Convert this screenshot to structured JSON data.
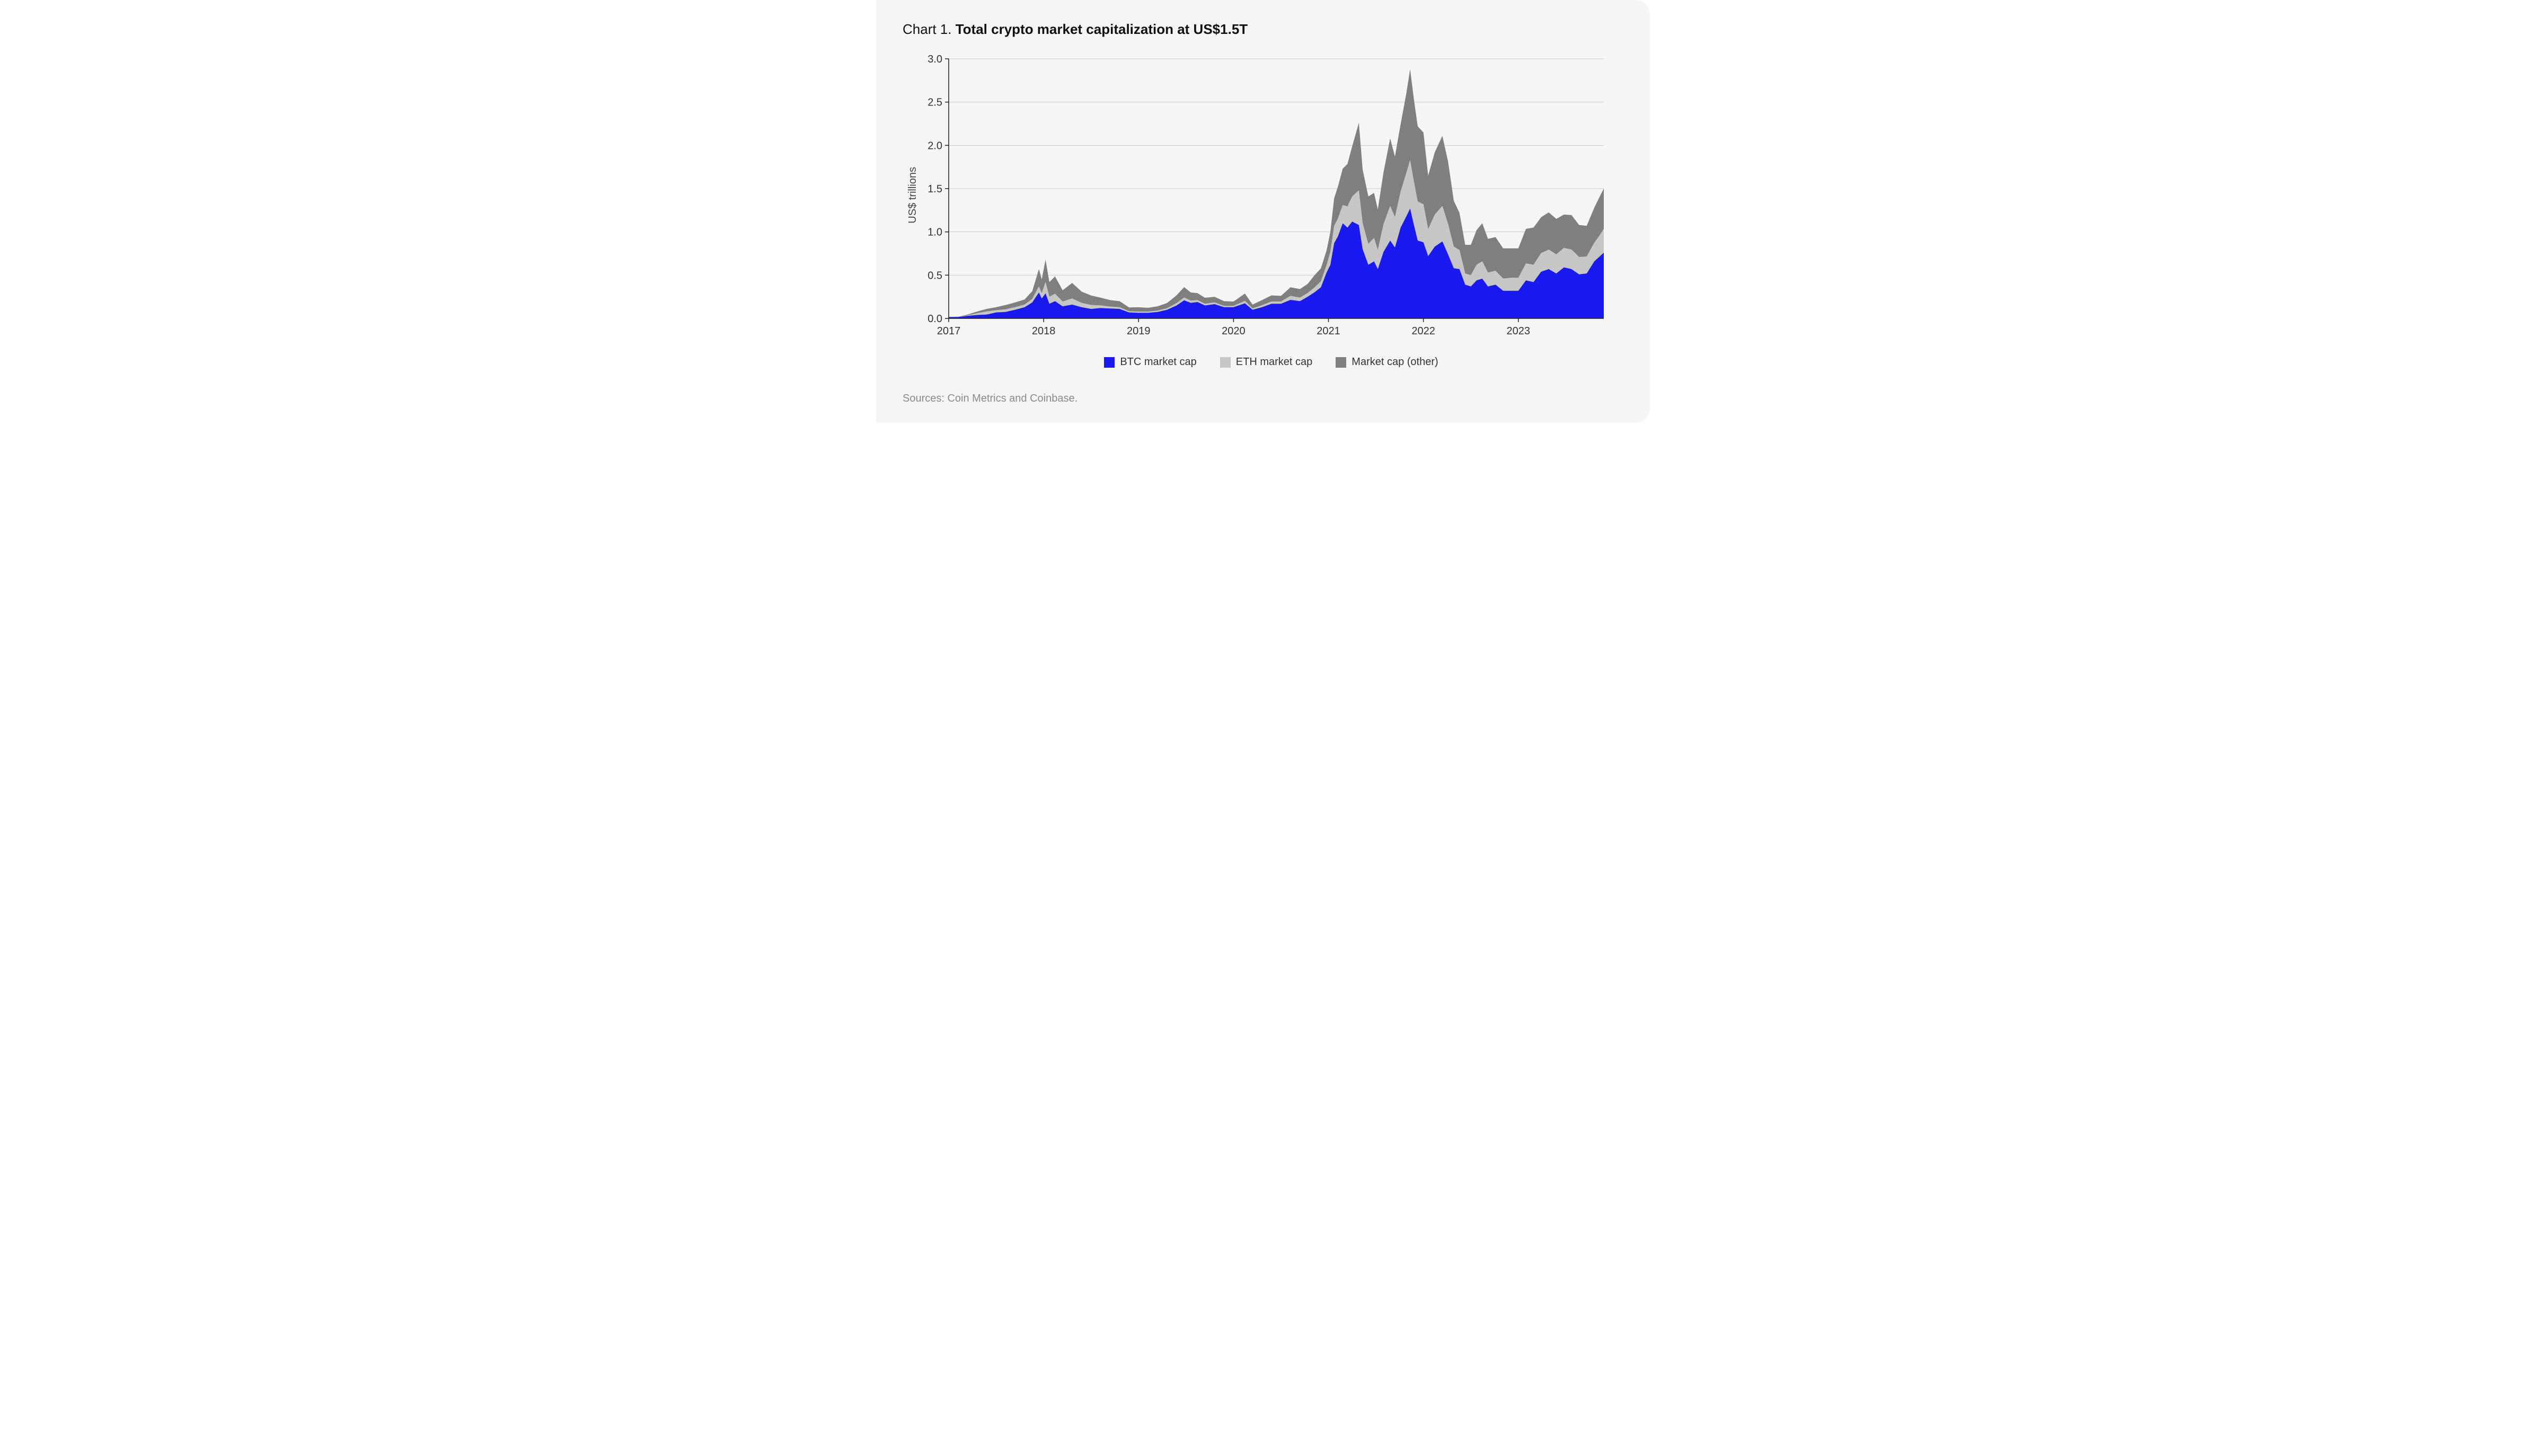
{
  "title_prefix": "Chart 1. ",
  "title_bold": "Total crypto market capitalization at US$1.5T",
  "y_axis_label": "US$ trillions",
  "sources_text": "Sources: Coin Metrics and Coinbase.",
  "legend": {
    "btc": "BTC market cap",
    "eth": "ETH market cap",
    "other": "Market cap (other)"
  },
  "chart": {
    "type": "stacked-area",
    "background_color": "#f5f5f5",
    "grid_color": "#c9c9c9",
    "axis_color": "#222222",
    "tick_font_size_px": 20,
    "x": {
      "min": 2017.0,
      "max": 2023.9,
      "ticks": [
        2017,
        2018,
        2019,
        2020,
        2021,
        2022,
        2023
      ],
      "tick_labels": [
        "2017",
        "2018",
        "2019",
        "2020",
        "2021",
        "2022",
        "2023"
      ]
    },
    "y": {
      "min": 0.0,
      "max": 3.0,
      "ticks": [
        0.0,
        0.5,
        1.0,
        1.5,
        2.0,
        2.5,
        3.0
      ],
      "tick_labels": [
        "0.0",
        "0.5",
        "1.0",
        "1.5",
        "2.0",
        "2.5",
        "3.0"
      ]
    },
    "series": [
      {
        "key": "btc",
        "color": "#1a1af0",
        "legend_label": "BTC market cap"
      },
      {
        "key": "eth",
        "color": "#c6c6c6",
        "legend_label": "ETH market cap"
      },
      {
        "key": "other",
        "color": "#7f7f7f",
        "legend_label": "Market cap (other)"
      }
    ],
    "data": [
      {
        "t": 2017.0,
        "btc": 0.015,
        "eth": 0.001,
        "other": 0.002
      },
      {
        "t": 2017.1,
        "btc": 0.017,
        "eth": 0.001,
        "other": 0.002
      },
      {
        "t": 2017.2,
        "btc": 0.03,
        "eth": 0.005,
        "other": 0.01
      },
      {
        "t": 2017.3,
        "btc": 0.04,
        "eth": 0.02,
        "other": 0.02
      },
      {
        "t": 2017.4,
        "btc": 0.045,
        "eth": 0.035,
        "other": 0.03
      },
      {
        "t": 2017.5,
        "btc": 0.07,
        "eth": 0.025,
        "other": 0.035
      },
      {
        "t": 2017.6,
        "btc": 0.075,
        "eth": 0.03,
        "other": 0.05
      },
      {
        "t": 2017.7,
        "btc": 0.1,
        "eth": 0.03,
        "other": 0.055
      },
      {
        "t": 2017.8,
        "btc": 0.13,
        "eth": 0.03,
        "other": 0.06
      },
      {
        "t": 2017.88,
        "btc": 0.185,
        "eth": 0.04,
        "other": 0.09
      },
      {
        "t": 2017.95,
        "btc": 0.3,
        "eth": 0.07,
        "other": 0.2
      },
      {
        "t": 2017.98,
        "btc": 0.23,
        "eth": 0.06,
        "other": 0.16
      },
      {
        "t": 2018.02,
        "btc": 0.29,
        "eth": 0.13,
        "other": 0.26
      },
      {
        "t": 2018.06,
        "btc": 0.17,
        "eth": 0.08,
        "other": 0.17
      },
      {
        "t": 2018.12,
        "btc": 0.2,
        "eth": 0.085,
        "other": 0.2
      },
      {
        "t": 2018.2,
        "btc": 0.14,
        "eth": 0.055,
        "other": 0.13
      },
      {
        "t": 2018.3,
        "btc": 0.16,
        "eth": 0.07,
        "other": 0.18
      },
      {
        "t": 2018.4,
        "btc": 0.13,
        "eth": 0.05,
        "other": 0.13
      },
      {
        "t": 2018.5,
        "btc": 0.11,
        "eth": 0.045,
        "other": 0.11
      },
      {
        "t": 2018.6,
        "btc": 0.12,
        "eth": 0.03,
        "other": 0.09
      },
      {
        "t": 2018.7,
        "btc": 0.115,
        "eth": 0.022,
        "other": 0.075
      },
      {
        "t": 2018.8,
        "btc": 0.11,
        "eth": 0.02,
        "other": 0.07
      },
      {
        "t": 2018.9,
        "btc": 0.07,
        "eth": 0.012,
        "other": 0.045
      },
      {
        "t": 2019.0,
        "btc": 0.065,
        "eth": 0.014,
        "other": 0.05
      },
      {
        "t": 2019.1,
        "btc": 0.065,
        "eth": 0.013,
        "other": 0.045
      },
      {
        "t": 2019.2,
        "btc": 0.075,
        "eth": 0.015,
        "other": 0.05
      },
      {
        "t": 2019.3,
        "btc": 0.1,
        "eth": 0.018,
        "other": 0.06
      },
      {
        "t": 2019.4,
        "btc": 0.15,
        "eth": 0.027,
        "other": 0.09
      },
      {
        "t": 2019.48,
        "btc": 0.21,
        "eth": 0.032,
        "other": 0.12
      },
      {
        "t": 2019.55,
        "btc": 0.18,
        "eth": 0.025,
        "other": 0.095
      },
      {
        "t": 2019.62,
        "btc": 0.19,
        "eth": 0.022,
        "other": 0.08
      },
      {
        "t": 2019.7,
        "btc": 0.15,
        "eth": 0.019,
        "other": 0.07
      },
      {
        "t": 2019.8,
        "btc": 0.165,
        "eth": 0.02,
        "other": 0.065
      },
      {
        "t": 2019.9,
        "btc": 0.13,
        "eth": 0.015,
        "other": 0.055
      },
      {
        "t": 2020.0,
        "btc": 0.13,
        "eth": 0.015,
        "other": 0.05
      },
      {
        "t": 2020.12,
        "btc": 0.175,
        "eth": 0.028,
        "other": 0.085
      },
      {
        "t": 2020.2,
        "btc": 0.1,
        "eth": 0.015,
        "other": 0.045
      },
      {
        "t": 2020.3,
        "btc": 0.13,
        "eth": 0.022,
        "other": 0.06
      },
      {
        "t": 2020.4,
        "btc": 0.17,
        "eth": 0.026,
        "other": 0.07
      },
      {
        "t": 2020.5,
        "btc": 0.17,
        "eth": 0.026,
        "other": 0.065
      },
      {
        "t": 2020.6,
        "btc": 0.215,
        "eth": 0.045,
        "other": 0.1
      },
      {
        "t": 2020.7,
        "btc": 0.2,
        "eth": 0.04,
        "other": 0.1
      },
      {
        "t": 2020.78,
        "btc": 0.25,
        "eth": 0.043,
        "other": 0.105
      },
      {
        "t": 2020.85,
        "btc": 0.3,
        "eth": 0.055,
        "other": 0.14
      },
      {
        "t": 2020.92,
        "btc": 0.36,
        "eth": 0.068,
        "other": 0.15
      },
      {
        "t": 2020.98,
        "btc": 0.53,
        "eth": 0.085,
        "other": 0.17
      },
      {
        "t": 2021.02,
        "btc": 0.62,
        "eth": 0.15,
        "other": 0.23
      },
      {
        "t": 2021.06,
        "btc": 0.87,
        "eth": 0.2,
        "other": 0.32
      },
      {
        "t": 2021.1,
        "btc": 0.95,
        "eth": 0.205,
        "other": 0.37
      },
      {
        "t": 2021.15,
        "btc": 1.1,
        "eth": 0.21,
        "other": 0.42
      },
      {
        "t": 2021.2,
        "btc": 1.05,
        "eth": 0.245,
        "other": 0.49
      },
      {
        "t": 2021.25,
        "btc": 1.12,
        "eth": 0.29,
        "other": 0.58
      },
      {
        "t": 2021.32,
        "btc": 1.08,
        "eth": 0.4,
        "other": 0.78
      },
      {
        "t": 2021.36,
        "btc": 0.8,
        "eth": 0.3,
        "other": 0.62
      },
      {
        "t": 2021.42,
        "btc": 0.62,
        "eth": 0.24,
        "other": 0.55
      },
      {
        "t": 2021.48,
        "btc": 0.66,
        "eth": 0.27,
        "other": 0.52
      },
      {
        "t": 2021.52,
        "btc": 0.57,
        "eth": 0.22,
        "other": 0.47
      },
      {
        "t": 2021.58,
        "btc": 0.77,
        "eth": 0.32,
        "other": 0.6
      },
      {
        "t": 2021.65,
        "btc": 0.9,
        "eth": 0.4,
        "other": 0.78
      },
      {
        "t": 2021.7,
        "btc": 0.82,
        "eth": 0.35,
        "other": 0.7
      },
      {
        "t": 2021.76,
        "btc": 1.05,
        "eth": 0.415,
        "other": 0.78
      },
      {
        "t": 2021.82,
        "btc": 1.18,
        "eth": 0.5,
        "other": 0.92
      },
      {
        "t": 2021.86,
        "btc": 1.27,
        "eth": 0.56,
        "other": 1.05
      },
      {
        "t": 2021.9,
        "btc": 1.08,
        "eth": 0.5,
        "other": 0.95
      },
      {
        "t": 2021.94,
        "btc": 0.9,
        "eth": 0.45,
        "other": 0.87
      },
      {
        "t": 2022.0,
        "btc": 0.88,
        "eth": 0.44,
        "other": 0.83
      },
      {
        "t": 2022.05,
        "btc": 0.72,
        "eth": 0.31,
        "other": 0.62
      },
      {
        "t": 2022.12,
        "btc": 0.83,
        "eth": 0.37,
        "other": 0.72
      },
      {
        "t": 2022.2,
        "btc": 0.89,
        "eth": 0.41,
        "other": 0.81
      },
      {
        "t": 2022.26,
        "btc": 0.74,
        "eth": 0.35,
        "other": 0.72
      },
      {
        "t": 2022.32,
        "btc": 0.58,
        "eth": 0.25,
        "other": 0.53
      },
      {
        "t": 2022.38,
        "btc": 0.57,
        "eth": 0.22,
        "other": 0.43
      },
      {
        "t": 2022.44,
        "btc": 0.39,
        "eth": 0.13,
        "other": 0.33
      },
      {
        "t": 2022.5,
        "btc": 0.37,
        "eth": 0.13,
        "other": 0.35
      },
      {
        "t": 2022.56,
        "btc": 0.44,
        "eth": 0.18,
        "other": 0.4
      },
      {
        "t": 2022.62,
        "btc": 0.46,
        "eth": 0.2,
        "other": 0.44
      },
      {
        "t": 2022.68,
        "btc": 0.37,
        "eth": 0.16,
        "other": 0.39
      },
      {
        "t": 2022.76,
        "btc": 0.39,
        "eth": 0.16,
        "other": 0.39
      },
      {
        "t": 2022.84,
        "btc": 0.32,
        "eth": 0.14,
        "other": 0.35
      },
      {
        "t": 2022.92,
        "btc": 0.32,
        "eth": 0.15,
        "other": 0.34
      },
      {
        "t": 2023.0,
        "btc": 0.32,
        "eth": 0.15,
        "other": 0.34
      },
      {
        "t": 2023.08,
        "btc": 0.44,
        "eth": 0.195,
        "other": 0.4
      },
      {
        "t": 2023.16,
        "btc": 0.42,
        "eth": 0.2,
        "other": 0.43
      },
      {
        "t": 2023.24,
        "btc": 0.54,
        "eth": 0.215,
        "other": 0.415
      },
      {
        "t": 2023.32,
        "btc": 0.57,
        "eth": 0.225,
        "other": 0.43
      },
      {
        "t": 2023.4,
        "btc": 0.52,
        "eth": 0.22,
        "other": 0.41
      },
      {
        "t": 2023.48,
        "btc": 0.59,
        "eth": 0.225,
        "other": 0.385
      },
      {
        "t": 2023.56,
        "btc": 0.57,
        "eth": 0.225,
        "other": 0.4
      },
      {
        "t": 2023.64,
        "btc": 0.51,
        "eth": 0.2,
        "other": 0.37
      },
      {
        "t": 2023.72,
        "btc": 0.52,
        "eth": 0.195,
        "other": 0.355
      },
      {
        "t": 2023.8,
        "btc": 0.66,
        "eth": 0.215,
        "other": 0.405
      },
      {
        "t": 2023.86,
        "btc": 0.72,
        "eth": 0.245,
        "other": 0.45
      },
      {
        "t": 2023.9,
        "btc": 0.76,
        "eth": 0.275,
        "other": 0.465
      }
    ]
  }
}
